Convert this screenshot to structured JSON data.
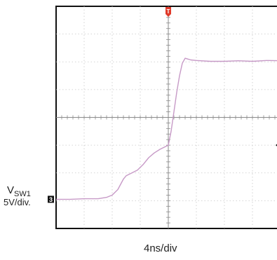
{
  "chart_data": {
    "type": "line",
    "title": "",
    "channel": {
      "name_main": "V",
      "name_sub": "SW1",
      "scale": "5V/div.",
      "marker": "3"
    },
    "time_scale": "4ns/div",
    "trigger_marker": "T",
    "divisions": {
      "x": 8,
      "y": 8
    },
    "xlim": [
      0,
      8
    ],
    "ylim": [
      0,
      8
    ],
    "grid": true,
    "trace_color": "#c79ac7",
    "grid_color": "#c8c8c8",
    "frame_color": "#111111",
    "trigger_color": "#e03a2a",
    "series": [
      {
        "x": [
          0,
          0.5,
          1.0,
          1.5,
          1.8,
          2.0,
          2.2,
          2.4,
          2.5,
          2.7,
          2.9,
          3.1,
          3.3,
          3.5,
          3.7,
          3.9,
          4.0,
          4.1,
          4.2,
          4.3,
          4.4,
          4.5,
          4.6,
          4.7,
          4.8,
          5.0,
          5.5,
          6.0,
          6.5,
          7.0,
          7.5,
          8.0
        ],
        "y": [
          1.05,
          1.05,
          1.07,
          1.07,
          1.12,
          1.2,
          1.4,
          1.78,
          1.9,
          2.0,
          2.1,
          2.3,
          2.55,
          2.72,
          2.85,
          2.95,
          3.0,
          3.5,
          4.2,
          4.9,
          5.5,
          5.95,
          6.13,
          6.1,
          6.07,
          6.05,
          6.02,
          6.02,
          6.04,
          6.02,
          6.05,
          6.04
        ]
      }
    ]
  }
}
